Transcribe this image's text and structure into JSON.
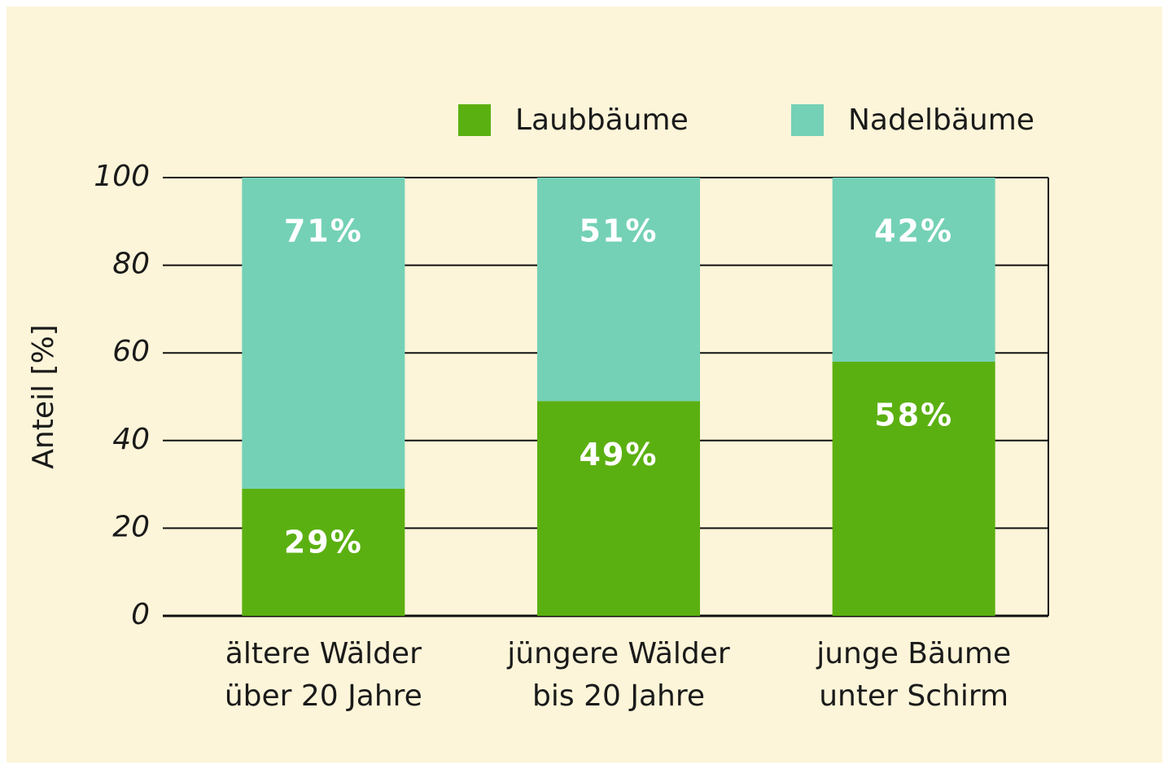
{
  "chart_data": {
    "type": "stacked_bar",
    "categories": [
      [
        "ältere Wälder",
        "über 20 Jahre"
      ],
      [
        "jüngere Wälder",
        "bis 20 Jahre"
      ],
      [
        "junge Bäume",
        "unter Schirm"
      ]
    ],
    "series": [
      {
        "name": "Laubbäume",
        "color": "#5bb011",
        "values": [
          29,
          49,
          58
        ],
        "value_labels": [
          "29%",
          "49%",
          "58%"
        ]
      },
      {
        "name": "Nadelbäume",
        "color": "#74d1b6",
        "values": [
          71,
          51,
          42
        ],
        "value_labels": [
          "71%",
          "51%",
          "42%"
        ]
      }
    ],
    "ylabel": "Anteil [%]",
    "ylim": [
      0,
      100
    ],
    "yticks": [
      0,
      20,
      40,
      60,
      80,
      100
    ],
    "grid": true
  }
}
